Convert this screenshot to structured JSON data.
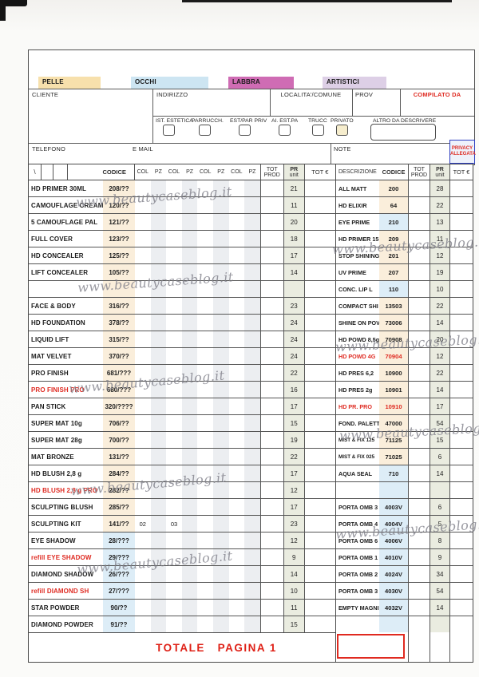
{
  "page": {
    "watermark_text": "www.beautycaseblog.it"
  },
  "colors": {
    "accent_red": "#df2b22",
    "privacy_blue": "#2e3ec0",
    "codice_tan": "#faeedb",
    "codice_blue": "#ddedf7",
    "pr_unit_green": "#eaece0",
    "pz_shade": "#eceef1"
  },
  "header": {
    "categories": [
      {
        "label": "PELLE",
        "color": "#f7e0ac"
      },
      {
        "label": "OCCHI",
        "color": "#cde5f2"
      },
      {
        "label": "LABBRA",
        "color": "#cf6cb4"
      },
      {
        "label": "ARTISTICI",
        "color": "#ddcfe6"
      }
    ],
    "fields": {
      "cliente": "CLIENTE",
      "indirizzo": "INDIRIZZO",
      "localita": "LOCALITA'/COMUNE",
      "prov": "PROV",
      "compilato": "COMPILATO DA",
      "telefono": "TELEFONO",
      "email": "E MAIL",
      "note": "NOTE",
      "altro": "ALTRO DA DESCRIVERE"
    },
    "checkboxes": [
      {
        "label": "IST. ESTETICA",
        "filled": false
      },
      {
        "label": "PARRUCCH.",
        "filled": false
      },
      {
        "label": "EST/PAR PRIV",
        "filled": false
      },
      {
        "label": "AI. EST.PA",
        "filled": false
      },
      {
        "label": "TRUCC",
        "filled": false
      },
      {
        "label": "PRIVATO",
        "filled": true
      }
    ],
    "privacy1": "PRIVACY",
    "privacy2": "ALLEGATA"
  },
  "left_table": {
    "corner_mark": "\\",
    "headers": {
      "codice": "CODICE",
      "col": "COL",
      "pz": "PZ",
      "tot1": "TOT",
      "tot2": "PROD",
      "pr1": "PR",
      "pr2": "unit",
      "toteur": "TOT €"
    },
    "rows": [
      {
        "name": "HD PRIMER 30ML",
        "codice": "208/??",
        "pr": "21",
        "bg": "tan"
      },
      {
        "name": "CAMOUFLAGE CREAM",
        "codice": "120/??",
        "pr": "11",
        "bg": "tan"
      },
      {
        "name": "5 CAMOUFLAGE PAL",
        "codice": "121/??",
        "pr": "20",
        "bg": "tan"
      },
      {
        "name": "FULL COVER",
        "codice": "123/??",
        "pr": "18",
        "bg": "tan"
      },
      {
        "name": "HD CONCEALER",
        "codice": "125/??",
        "pr": "17",
        "bg": "tan"
      },
      {
        "name": "LIFT CONCEALER",
        "codice": "105/??",
        "pr": "14",
        "bg": "tan"
      },
      {
        "name": "",
        "codice": "",
        "pr": "",
        "bg": "tan"
      },
      {
        "name": "FACE & BODY",
        "codice": "316/??",
        "pr": "23",
        "bg": "tan"
      },
      {
        "name": "HD FOUNDATION",
        "codice": "378/??",
        "pr": "24",
        "bg": "tan"
      },
      {
        "name": "LIQUID LIFT",
        "codice": "315/??",
        "pr": "24",
        "bg": "tan"
      },
      {
        "name": "MAT VELVET",
        "codice": "370/??",
        "pr": "24",
        "bg": "tan"
      },
      {
        "name": "PRO FINISH",
        "codice": "681/???",
        "pr": "22",
        "bg": "tan"
      },
      {
        "name": "PRO FINISH  PRO",
        "codice": "680/???",
        "pr": "16",
        "bg": "tan",
        "red": true
      },
      {
        "name": "PAN STICK",
        "codice": "320/????",
        "pr": "17",
        "bg": "tan"
      },
      {
        "name": "SUPER MAT  10g",
        "codice": "706/??",
        "pr": "15",
        "bg": "tan"
      },
      {
        "name": "SUPER MAT  28g",
        "codice": "700/??",
        "pr": "19",
        "bg": "tan"
      },
      {
        "name": "MAT BRONZE",
        "codice": "131/??",
        "pr": "22",
        "bg": "tan"
      },
      {
        "name": "HD BLUSH  2,8 g",
        "codice": "284/??",
        "pr": "17",
        "bg": "tan"
      },
      {
        "name": "HD BLUSH  2,8 g PRO",
        "codice": "282/??",
        "pr": "12",
        "bg": "tan",
        "red": true
      },
      {
        "name": "SCULPTING BLUSH",
        "codice": "285/??",
        "pr": "17",
        "bg": "tan"
      },
      {
        "name": "SCULPTING KIT",
        "codice": "141/??",
        "pr": "23",
        "bg": "tan",
        "col1": "02",
        "col2": "03"
      },
      {
        "name": "EYE SHADOW",
        "codice": "28/???",
        "pr": "12",
        "bg": "blue"
      },
      {
        "name": "refill EYE SHADOW",
        "codice": "29/???",
        "pr": "9",
        "bg": "blue",
        "red": true
      },
      {
        "name": "DIAMOND SHADOW",
        "codice": "26/???",
        "pr": "14",
        "bg": "blue"
      },
      {
        "name": "refill  DIAMOND SH",
        "codice": "27/???",
        "pr": "10",
        "bg": "blue",
        "red": true
      },
      {
        "name": "STAR POWDER",
        "codice": "90/??",
        "pr": "11",
        "bg": "blue"
      },
      {
        "name": "DIAMOND POWDER",
        "codice": "91/??",
        "pr": "15",
        "bg": "blue"
      }
    ]
  },
  "right_table": {
    "headers": {
      "descrizione": "DESCRIZIONE",
      "codice": "CODICE",
      "tot1": "TOT",
      "tot2": "PROD",
      "pr1": "PR",
      "pr2": "unit",
      "toteur": "TOT €"
    },
    "rows": [
      {
        "name": "ALL MATT",
        "codice": "200",
        "pr": "28",
        "bg": "tan"
      },
      {
        "name": "HD ELIXIR",
        "codice": "64",
        "pr": "22",
        "bg": "tan"
      },
      {
        "name": "EYE PRIME",
        "codice": "210",
        "pr": "13",
        "bg": "blue"
      },
      {
        "name": "HD PRIMER 15",
        "codice": "209",
        "pr": "11",
        "bg": "tan"
      },
      {
        "name": "STOP SHINING",
        "codice": "201",
        "pr": "12",
        "bg": "tan"
      },
      {
        "name": "UV PRIME",
        "codice": "207",
        "pr": "19",
        "bg": "tan"
      },
      {
        "name": "CONC. LIP L",
        "codice": "110",
        "pr": "10",
        "bg": "blue"
      },
      {
        "name": "COMPACT SHI",
        "codice": "13503",
        "pr": "22",
        "bg": "tan"
      },
      {
        "name": "SHINE ON POV",
        "codice": "73006",
        "pr": "14",
        "bg": "tan"
      },
      {
        "name": "HD POWD 8,5g",
        "codice": "70908",
        "pr": "20",
        "bg": "tan"
      },
      {
        "name": "HD POWD 4G",
        "codice": "70904",
        "pr": "12",
        "bg": "tan",
        "red": true
      },
      {
        "name": "HD PRES 6,2",
        "codice": "10900",
        "pr": "22",
        "bg": "tan"
      },
      {
        "name": "HD PRES 2g",
        "codice": "10901",
        "pr": "14",
        "bg": "tan"
      },
      {
        "name": "HD PR. PRO",
        "codice": "10910",
        "pr": "17",
        "bg": "tan",
        "red": true
      },
      {
        "name": "FOND. PALETT",
        "codice": "47000",
        "pr": "54",
        "bg": "tan"
      },
      {
        "name": "MIST & FIX 125",
        "codice": "71125",
        "pr": "15",
        "bg": "tan",
        "small": true
      },
      {
        "name": "MIST & FIX 025",
        "codice": "71025",
        "pr": "6",
        "bg": "tan",
        "small": true
      },
      {
        "name": "AQUA SEAL",
        "codice": "710",
        "pr": "14",
        "bg": "blue"
      },
      {
        "name": "",
        "codice": "",
        "pr": "",
        "bg": "blue"
      },
      {
        "name": "PORTA OMB 3",
        "codice": "4003V",
        "pr": "6",
        "bg": "blue"
      },
      {
        "name": "PORTA OMB 4",
        "codice": "4004V",
        "pr": "5",
        "bg": "blue"
      },
      {
        "name": "PORTA OMB 6",
        "codice": "4006V",
        "pr": "8",
        "bg": "blue"
      },
      {
        "name": "PORTA OMB 1",
        "codice": "4010V",
        "pr": "9",
        "bg": "blue"
      },
      {
        "name": "PORTA OMB 2",
        "codice": "4024V",
        "pr": "34",
        "bg": "blue"
      },
      {
        "name": "PORTA OMB 3",
        "codice": "4030V",
        "pr": "54",
        "bg": "blue"
      },
      {
        "name": "EMPTY MAGNI",
        "codice": "4032V",
        "pr": "14",
        "bg": "blue"
      },
      {
        "name": "",
        "codice": "",
        "pr": "",
        "bg": "blue"
      }
    ]
  },
  "footer": {
    "totale_label": "TOTALE   PAGINA 1"
  }
}
